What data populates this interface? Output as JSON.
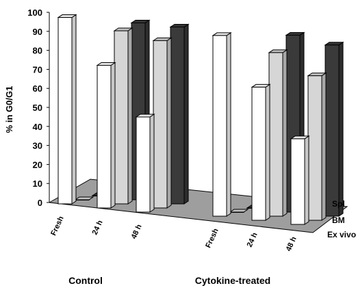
{
  "chart_data": {
    "type": "bar",
    "ylabel": "% in G0/G1",
    "ylim": [
      0,
      100
    ],
    "yticks": [
      "0",
      "10",
      "20",
      "30",
      "40",
      "50",
      "60",
      "70",
      "80",
      "90",
      "100"
    ],
    "groups": [
      {
        "label": "Control",
        "categories": [
          "Fresh",
          "24 h",
          "48 h"
        ]
      },
      {
        "label": "Cytokine-treated",
        "categories": [
          "Fresh",
          "24 h",
          "48 h"
        ]
      }
    ],
    "depth_labels": [
      "Spl",
      "BM",
      "Ex vivo"
    ],
    "series": [
      {
        "name": "Ex vivo",
        "color": "#ffffff",
        "values": [
          98,
          75,
          50,
          95,
          70,
          45
        ]
      },
      {
        "name": "BM",
        "color": "#d6d6d6",
        "values": [
          0,
          91,
          88,
          0,
          86,
          76
        ]
      },
      {
        "name": "Spl",
        "color": "#3a3a3a",
        "values": [
          0,
          93,
          93,
          0,
          93,
          90
        ]
      }
    ]
  }
}
